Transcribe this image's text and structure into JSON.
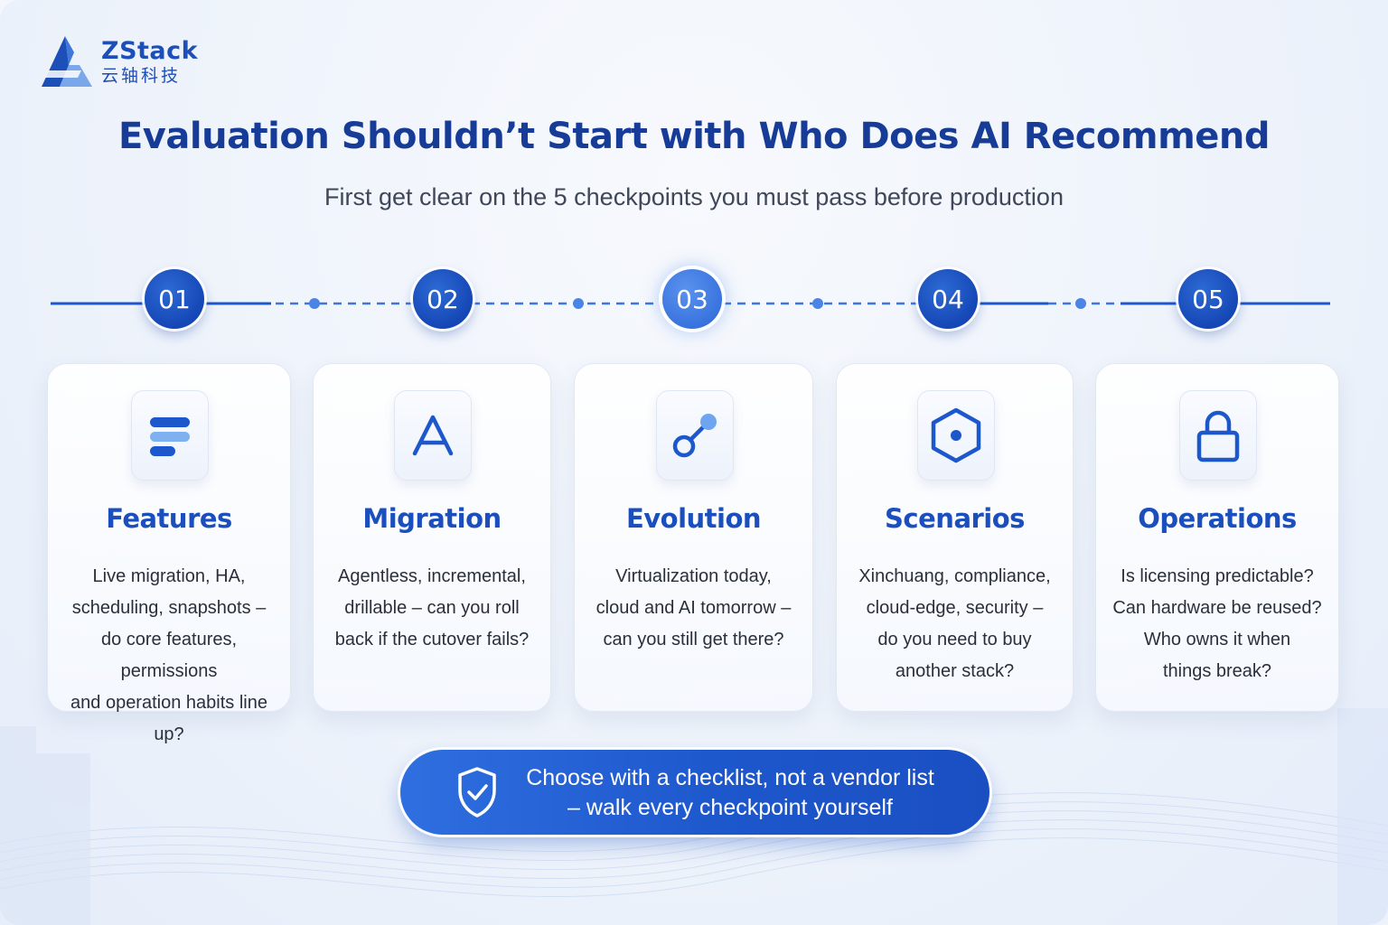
{
  "brand": {
    "name": "ZStack",
    "subname": "云轴科技"
  },
  "header": {
    "title": "Evaluation Shouldn’t Start with Who Does AI Recommend",
    "subtitle": "First get clear on the 5 checkpoints you must pass before production"
  },
  "steps": [
    {
      "number": "01",
      "icon": "list-lines-icon",
      "title": "Features",
      "description": "Live migration, HA,\nscheduling, snapshots –\ndo core features, permissions\nand operation habits line up?"
    },
    {
      "number": "02",
      "icon": "letter-a-icon",
      "title": "Migration",
      "description": "Agentless, incremental,\ndrillable – can you roll\nback if the cutover fails?"
    },
    {
      "number": "03",
      "icon": "node-link-icon",
      "title": "Evolution",
      "description": "Virtualization today,\ncloud and AI tomorrow –\ncan you still get there?"
    },
    {
      "number": "04",
      "icon": "hexagon-node-icon",
      "title": "Scenarios",
      "description": "Xinchuang, compliance,\ncloud-edge, security –\ndo you need to buy\nanother stack?"
    },
    {
      "number": "05",
      "icon": "padlock-icon",
      "title": "Operations",
      "description": "Is licensing predictable?\nCan hardware be reused?\nWho owns it when\nthings break?"
    }
  ],
  "active_step": "03",
  "callout": {
    "icon": "shield-check-icon",
    "line1": "Choose with a checklist, not a vendor list",
    "line2": "– walk every checkpoint yourself"
  },
  "colors": {
    "primary": "#1547b6",
    "title": "#173c97",
    "accent": "#3b76df",
    "text": "#2a2f3a"
  }
}
